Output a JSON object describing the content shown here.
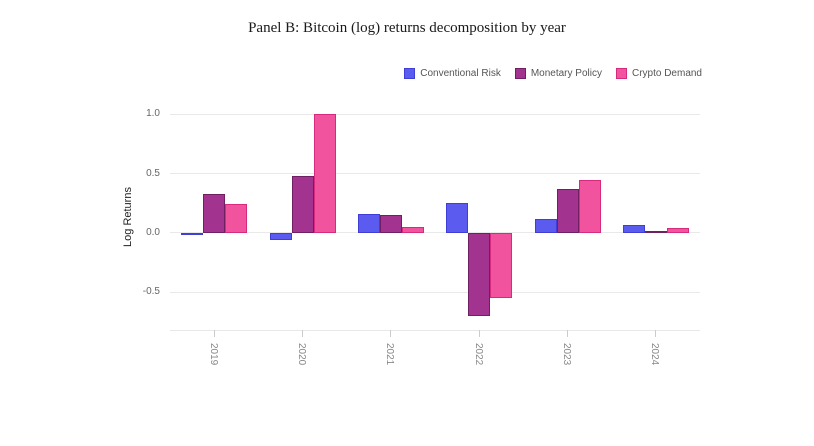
{
  "title": "Panel B: Bitcoin (log) returns decomposition by year",
  "y_axis_label": "Log Returns",
  "chart_data": {
    "type": "bar",
    "title": "Panel B: Bitcoin (log) returns decomposition by year",
    "xlabel": "",
    "ylabel": "Log Returns",
    "categories": [
      "2019",
      "2020",
      "2021",
      "2022",
      "2023",
      "2024"
    ],
    "series": [
      {
        "name": "Conventional Risk",
        "color": "#5b5bf0",
        "border_color": "#3f3fd6",
        "values": [
          -0.02,
          -0.06,
          0.16,
          0.25,
          0.12,
          0.07
        ]
      },
      {
        "name": "Monetary Policy",
        "color": "#a2348f",
        "border_color": "#711f63",
        "values": [
          0.33,
          0.48,
          0.15,
          -0.7,
          0.37,
          0.02
        ]
      },
      {
        "name": "Crypto Demand",
        "color": "#f2539e",
        "border_color": "#d62a7e",
        "values": [
          0.24,
          1.0,
          0.05,
          -0.55,
          0.45,
          0.04
        ]
      }
    ],
    "yticks": [
      1.0,
      0.5,
      0.0,
      -0.5
    ],
    "ylim": [
      -0.82,
      1.08
    ],
    "grid": true,
    "legend_position": "top-right",
    "background": "#ffffff"
  }
}
